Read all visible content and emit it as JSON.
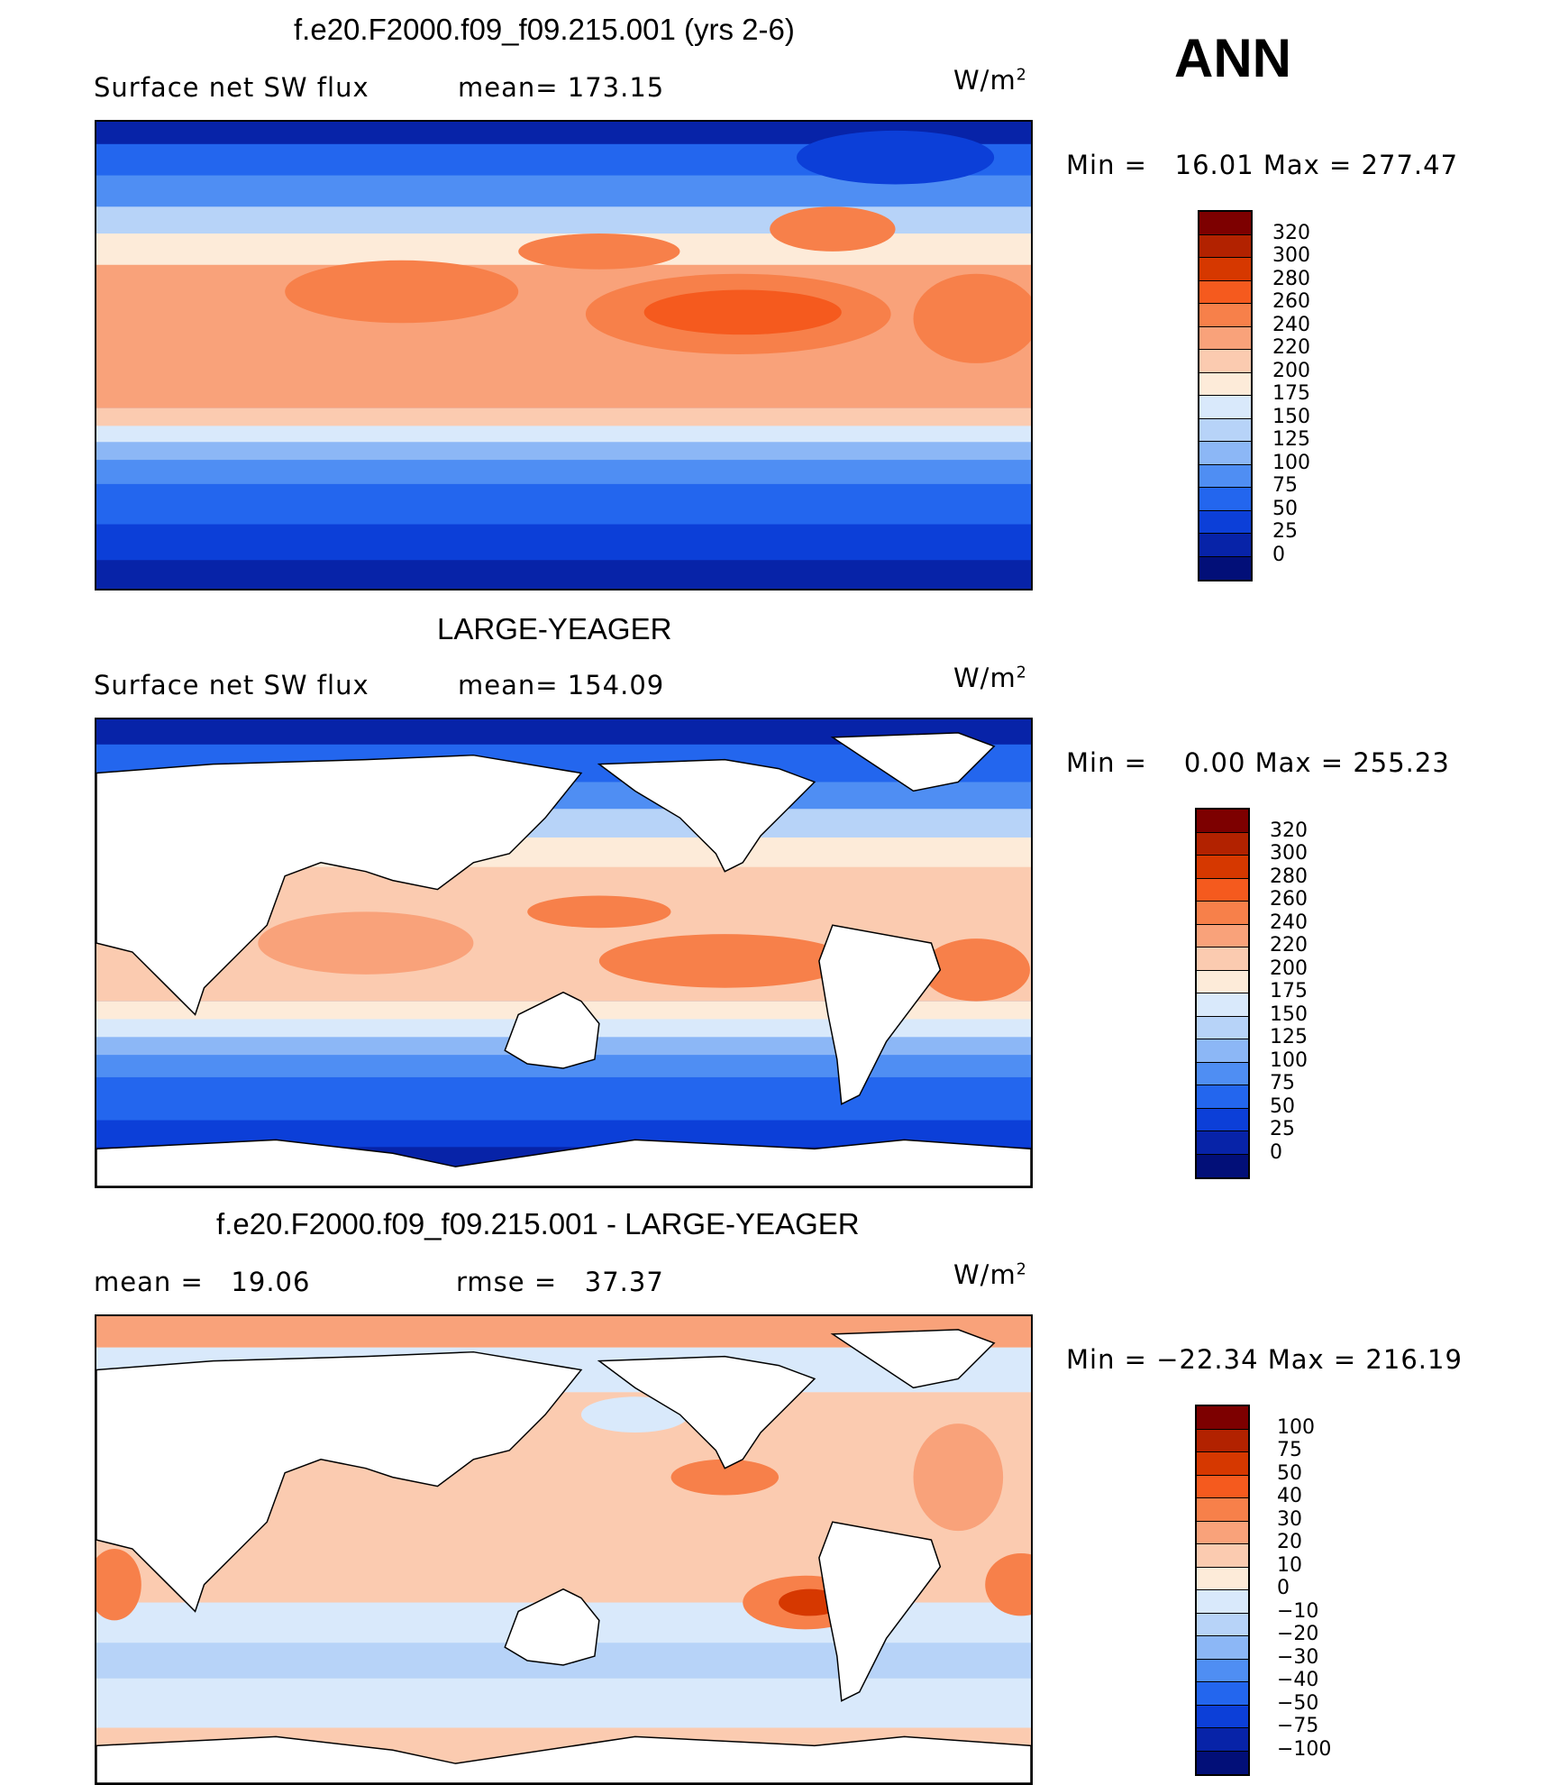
{
  "season": "ANN",
  "units_base": "W/m",
  "units_exp": "2",
  "panels": [
    {
      "title": "f.e20.F2000.f09_f09.215.001 (yrs 2-6)",
      "left_text": "Surface net SW flux",
      "mid_text": "mean= 173.15",
      "minmax": "Min =   16.01 Max = 277.47",
      "levels": [
        "320",
        "300",
        "280",
        "260",
        "240",
        "220",
        "200",
        "175",
        "150",
        "125",
        "100",
        "75",
        "50",
        "25",
        "0"
      ],
      "colors": [
        "#7d0000",
        "#b22200",
        "#d63800",
        "#f55a1e",
        "#f7804a",
        "#f9a27a",
        "#fbcbb0",
        "#fdebd9",
        "#d9e9fb",
        "#b7d3f8",
        "#8cb7f6",
        "#4f8ef3",
        "#2366ee",
        "#0c3fd8",
        "#0723a8",
        "#020f78"
      ]
    },
    {
      "title": "LARGE-YEAGER",
      "left_text": "Surface net SW flux",
      "mid_text": "mean= 154.09",
      "minmax": "Min =    0.00 Max = 255.23",
      "levels": [
        "320",
        "300",
        "280",
        "260",
        "240",
        "220",
        "200",
        "175",
        "150",
        "125",
        "100",
        "75",
        "50",
        "25",
        "0"
      ],
      "colors": [
        "#7d0000",
        "#b22200",
        "#d63800",
        "#f55a1e",
        "#f7804a",
        "#f9a27a",
        "#fbcbb0",
        "#fdebd9",
        "#d9e9fb",
        "#b7d3f8",
        "#8cb7f6",
        "#4f8ef3",
        "#2366ee",
        "#0c3fd8",
        "#0723a8",
        "#020f78"
      ]
    },
    {
      "title": "f.e20.F2000.f09_f09.215.001 - LARGE-YEAGER",
      "left_text": "mean =   19.06",
      "mid_text": "rmse =   37.37",
      "minmax": "Min = −22.34 Max = 216.19",
      "levels": [
        "100",
        "75",
        "50",
        "40",
        "30",
        "20",
        "10",
        "0",
        "−10",
        "−20",
        "−30",
        "−40",
        "−50",
        "−75",
        "−100"
      ],
      "colors": [
        "#7d0000",
        "#b22200",
        "#d63800",
        "#f55a1e",
        "#f7804a",
        "#f9a27a",
        "#fbcbb0",
        "#fdebd9",
        "#d9e9fb",
        "#b7d3f8",
        "#8cb7f6",
        "#4f8ef3",
        "#2366ee",
        "#0c3fd8",
        "#0723a8",
        "#020f78"
      ]
    }
  ]
}
